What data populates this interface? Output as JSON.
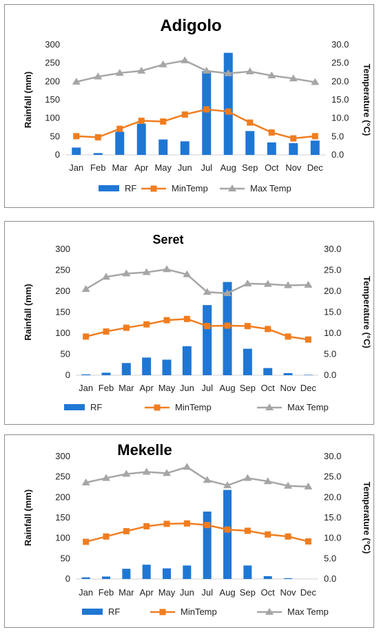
{
  "colors": {
    "rf": "#1f77d4",
    "min": "#f07d20",
    "max": "#a6a6a6"
  },
  "chart_data": [
    {
      "type": "bar",
      "title": "Adigolo",
      "categories": [
        "Jan",
        "Feb",
        "Mar",
        "Apr",
        "May",
        "Jun",
        "Jul",
        "Aug",
        "Sep",
        "Oct",
        "Nov",
        "Dec"
      ],
      "ylabel": "Rainfall (mm)",
      "y2label": "Temperature  (°C)",
      "ylim": [
        0,
        300
      ],
      "y2lim": [
        0,
        30
      ],
      "yticks": [
        "0",
        "50",
        "100",
        "150",
        "200",
        "250",
        "300"
      ],
      "y2ticks": [
        "0.0",
        "5.0",
        "10.0",
        "15.0",
        "20.0",
        "25.0",
        "30.0"
      ],
      "legend_position": "bottom",
      "series": [
        {
          "name": "RF",
          "type": "bar",
          "axis": "left",
          "values": [
            20,
            5,
            63,
            85,
            42,
            37,
            228,
            278,
            65,
            34,
            32,
            39
          ]
        },
        {
          "name": "MinTemp",
          "type": "line",
          "marker": "square",
          "axis": "right",
          "values": [
            5.1,
            4.8,
            7.1,
            9.3,
            9.1,
            11.0,
            12.4,
            11.8,
            8.8,
            6.1,
            4.5,
            5.1
          ]
        },
        {
          "name": "Max Temp",
          "type": "line",
          "marker": "triangle",
          "axis": "right",
          "values": [
            19.9,
            21.3,
            22.3,
            22.9,
            24.6,
            25.7,
            22.9,
            22.2,
            22.7,
            21.6,
            20.8,
            19.8
          ]
        }
      ]
    },
    {
      "type": "bar",
      "title": "Seret",
      "categories": [
        "Jan",
        "Feb",
        "Mar",
        "Apr",
        "May",
        "Jun",
        "Jul",
        "Aug",
        "Sep",
        "Oct",
        "Nov",
        "Dec"
      ],
      "ylabel": "Rainfall (mm)",
      "y2label": "Temperature (°C)",
      "ylim": [
        0,
        300
      ],
      "y2lim": [
        0,
        30
      ],
      "yticks": [
        "0",
        "50",
        "100",
        "150",
        "200",
        "250",
        "300"
      ],
      "y2ticks": [
        "0.0",
        "5.0",
        "10.0",
        "15.0",
        "20.0",
        "25.0",
        "30.0"
      ],
      "legend_position": "bottom",
      "series": [
        {
          "name": "RF",
          "type": "bar",
          "axis": "left",
          "values": [
            2,
            6,
            29,
            42,
            37,
            69,
            167,
            222,
            63,
            17,
            5,
            1
          ]
        },
        {
          "name": "MinTemp",
          "type": "line",
          "marker": "square",
          "axis": "right",
          "values": [
            9.2,
            10.4,
            11.3,
            12.1,
            13.1,
            13.4,
            11.7,
            11.8,
            11.7,
            11.0,
            9.2,
            8.5
          ]
        },
        {
          "name": "Max Temp",
          "type": "line",
          "marker": "triangle",
          "axis": "right",
          "values": [
            20.5,
            23.4,
            24.2,
            24.5,
            25.2,
            24.0,
            19.8,
            19.5,
            21.8,
            21.7,
            21.4,
            21.5
          ]
        }
      ]
    },
    {
      "type": "bar",
      "title": "Mekelle",
      "categories": [
        "Jan",
        "Feb",
        "Mar",
        "Apr",
        "May",
        "Jun",
        "Jul",
        "Aug",
        "Sep",
        "Oct",
        "Nov",
        "Dec"
      ],
      "ylabel": "Rainfall (mm)",
      "y2label": "Temperature (°C)",
      "ylim": [
        0,
        300
      ],
      "y2lim": [
        0,
        30
      ],
      "yticks": [
        "0",
        "50",
        "100",
        "150",
        "200",
        "250",
        "300"
      ],
      "y2ticks": [
        "0.0",
        "5.0",
        "10.0",
        "15.0",
        "20.0",
        "25.0",
        "30.0"
      ],
      "legend_position": "bottom",
      "series": [
        {
          "name": "RF",
          "type": "bar",
          "axis": "left",
          "values": [
            4,
            6,
            25,
            35,
            26,
            33,
            165,
            218,
            33,
            7,
            2,
            0
          ]
        },
        {
          "name": "MinTemp",
          "type": "line",
          "marker": "square",
          "axis": "right",
          "values": [
            9.1,
            10.4,
            11.7,
            12.9,
            13.5,
            13.6,
            13.2,
            12.1,
            11.8,
            10.9,
            10.4,
            9.2
          ]
        },
        {
          "name": "Max Temp",
          "type": "line",
          "marker": "triangle",
          "axis": "right",
          "values": [
            23.6,
            24.7,
            25.7,
            26.2,
            25.9,
            27.4,
            24.2,
            22.9,
            24.7,
            23.9,
            22.8,
            22.6
          ]
        }
      ]
    }
  ]
}
